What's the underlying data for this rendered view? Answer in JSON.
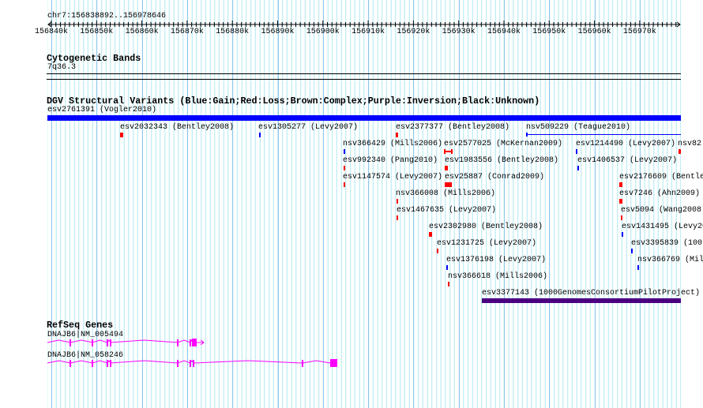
{
  "ruler": {
    "location": "chr7:156838892..156978646",
    "tick_labels": [
      "156840k",
      "156850k",
      "156860k",
      "156870k",
      "156880k",
      "156890k",
      "156900k",
      "156910k",
      "156920k",
      "156930k",
      "156940k",
      "156950k",
      "156960k",
      "156970k"
    ]
  },
  "cytoband": {
    "title": "Cytogenetic Bands",
    "band": "7q36.3"
  },
  "dgv": {
    "title": "DGV Structural Variants (Blue:Gain;Red:Loss;Brown:Complex;Purple:Inversion;Black:Unknown)",
    "colors": {
      "gain": "#0000ff",
      "loss": "#ff0000",
      "inversion": "#4b0082"
    },
    "features": [
      {
        "label": "esv2761391 (Vogler2010)",
        "type": "gain"
      },
      {
        "label": "esv2032343 (Bentley2008)",
        "type": "loss"
      },
      {
        "label": "esv1305277 (Levy2007)",
        "type": "gain"
      },
      {
        "label": "esv2377377 (Bentley2008)",
        "type": "loss"
      },
      {
        "label": "nsv509229 (Teague2010)",
        "type": "gain"
      },
      {
        "label": "nsv366429 (Mills2006)",
        "type": "gain"
      },
      {
        "label": "esv2577025 (McKernan2009)",
        "type": "loss"
      },
      {
        "label": "esv1214490 (Levy2007)",
        "type": "gain"
      },
      {
        "label": "nsv82",
        "type": "loss"
      },
      {
        "label": "esv992340 (Pang2010)",
        "type": "loss"
      },
      {
        "label": "esv1983556 (Bentley2008)",
        "type": "loss"
      },
      {
        "label": "esv1406537 (Levy2007)",
        "type": "gain"
      },
      {
        "label": "esv1147574 (Levy2007)",
        "type": "loss"
      },
      {
        "label": "esv25887 (Conrad2009)",
        "type": "loss"
      },
      {
        "label": "esv2176609 (Bentle",
        "type": "loss"
      },
      {
        "label": "nsv366008 (Mills2006)",
        "type": "loss"
      },
      {
        "label": "esv7246 (Ahn2009)",
        "type": "loss"
      },
      {
        "label": "esv1467635 (Levy2007)",
        "type": "loss"
      },
      {
        "label": "esv5094 (Wang2008)",
        "type": "loss"
      },
      {
        "label": "esv2302980 (Bentley2008)",
        "type": "loss"
      },
      {
        "label": "esv1431495 (Levy20",
        "type": "gain"
      },
      {
        "label": "esv1231725 (Levy2007)",
        "type": "loss"
      },
      {
        "label": "esv3395839 (100",
        "type": "gain"
      },
      {
        "label": "esv1376198 (Levy2007)",
        "type": "gain"
      },
      {
        "label": "nsv366769 (Mil",
        "type": "gain"
      },
      {
        "label": "nsv366618 (Mills2006)",
        "type": "loss"
      },
      {
        "label": "esv3377143 (1000GenomesConsortiumPilotProject)",
        "type": "inversion"
      }
    ]
  },
  "refseq": {
    "title": "RefSeq Genes",
    "color": "#ff00ff",
    "genes": [
      {
        "label": "DNAJB6|NM_005494"
      },
      {
        "label": "DNAJB6|NM_058246"
      }
    ]
  }
}
